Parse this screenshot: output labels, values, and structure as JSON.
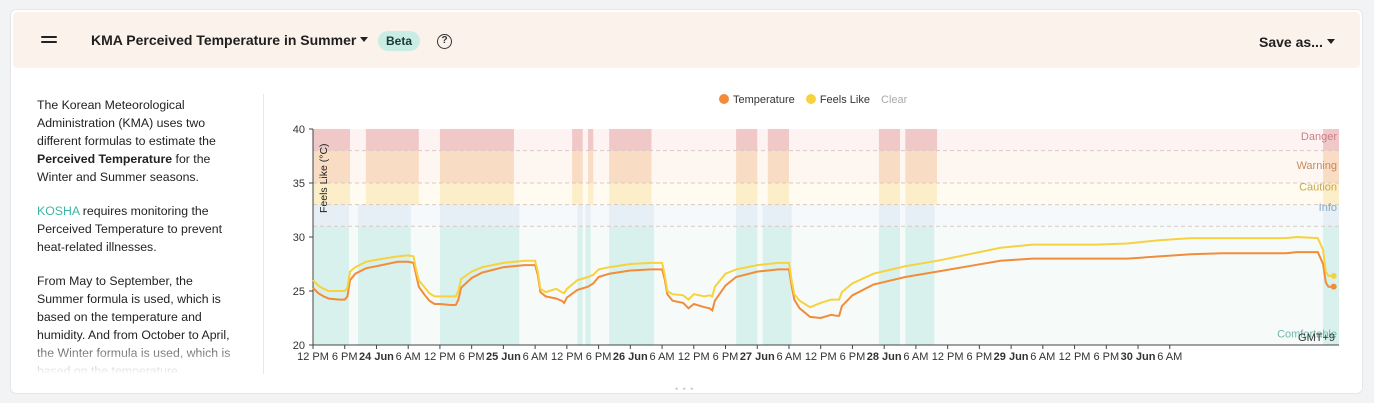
{
  "header": {
    "title": "KMA Perceived Temperature in Summer",
    "badge": "Beta",
    "help": "?",
    "save_label": "Save as..."
  },
  "description": {
    "p1_a": "The Korean Meteorological Administration (KMA) uses two different formulas to estimate the ",
    "p1_bold": "Perceived Temperature",
    "p1_b": " for the Winter and Summer seasons.",
    "p2_link": "KOSHA",
    "p2_b": " requires monitoring the Perceived Temperature to prevent heat-related illnesses.",
    "p3": "From May to September, the Summer formula is used, which is based on the temperature and humidity. And from October to April, the Winter formula is used, which is based on the temperature"
  },
  "legend": {
    "temperature": "Temperature",
    "feels_like": "Feels Like",
    "clear": "Clear"
  },
  "colors": {
    "temperature": "#f28c3a",
    "feels_like": "#f7d23e",
    "danger": "#f0c8c8",
    "warning": "#f9dcc4",
    "caution": "#fbeec8",
    "info": "#e6eef6",
    "comfortable": "#d8f1ec"
  },
  "chart_data": {
    "type": "line",
    "ylabel": "Feels Like (°C)",
    "ylim": [
      20,
      40
    ],
    "y_ticks": [
      20,
      25,
      30,
      35,
      40
    ],
    "x_ticks": [
      "12 PM",
      "6 PM",
      "24 Jun",
      "6 AM",
      "12 PM",
      "6 PM",
      "25 Jun",
      "6 AM",
      "12 PM",
      "6 PM",
      "26 Jun",
      "6 AM",
      "12 PM",
      "6 PM",
      "27 Jun",
      "6 AM",
      "12 PM",
      "6 PM",
      "28 Jun",
      "6 AM",
      "12 PM",
      "6 PM",
      "29 Jun",
      "6 AM",
      "12 PM",
      "6 PM",
      "30 Jun",
      "6 AM"
    ],
    "timezone": "GMT+9",
    "x_unit": "hours from 23 Jun 12 PM",
    "bands": [
      {
        "label": "Comfortable",
        "from": 20,
        "to": 31
      },
      {
        "label": "Info",
        "from": 31,
        "to": 33
      },
      {
        "label": "Caution",
        "from": 33,
        "to": 35
      },
      {
        "label": "Warning",
        "from": 35,
        "to": 38
      },
      {
        "label": "Danger",
        "from": 38,
        "to": 40
      }
    ],
    "series": [
      {
        "name": "Temperature",
        "points": [
          [
            0,
            25.3
          ],
          [
            1,
            24.8
          ],
          [
            2,
            24.5
          ],
          [
            3,
            24.3
          ],
          [
            5,
            24.2
          ],
          [
            6,
            24.2
          ],
          [
            6.5,
            24.5
          ],
          [
            7,
            26
          ],
          [
            8,
            26.6
          ],
          [
            10,
            27.1
          ],
          [
            12,
            27.3
          ],
          [
            16,
            27.7
          ],
          [
            18,
            27.7
          ],
          [
            19,
            27.6
          ],
          [
            19.5,
            26.5
          ],
          [
            20,
            25.4
          ],
          [
            21,
            24.7
          ],
          [
            22,
            24.1
          ],
          [
            23,
            23.8
          ],
          [
            24,
            23.8
          ],
          [
            26,
            23.7
          ],
          [
            27,
            23.7
          ],
          [
            27.5,
            24.2
          ],
          [
            28,
            25.3
          ],
          [
            30,
            26.2
          ],
          [
            32,
            26.7
          ],
          [
            36,
            27.2
          ],
          [
            40,
            27.4
          ],
          [
            42,
            27.4
          ],
          [
            42.5,
            26.5
          ],
          [
            43,
            24.9
          ],
          [
            44,
            24.5
          ],
          [
            46,
            24.3
          ],
          [
            47,
            24.1
          ],
          [
            47.5,
            23.9
          ],
          [
            48,
            24.4
          ],
          [
            50,
            25.1
          ],
          [
            52,
            25.4
          ],
          [
            53,
            25.7
          ],
          [
            54,
            26.3
          ],
          [
            56,
            26.6
          ],
          [
            60,
            26.9
          ],
          [
            64,
            27
          ],
          [
            66,
            27
          ],
          [
            66.5,
            26.1
          ],
          [
            67,
            24.7
          ],
          [
            68,
            24.1
          ],
          [
            70,
            23.9
          ],
          [
            71,
            23.4
          ],
          [
            72,
            23.8
          ],
          [
            74,
            23.5
          ],
          [
            75,
            23.4
          ],
          [
            75.5,
            23.2
          ],
          [
            76,
            24.1
          ],
          [
            78,
            25.5
          ],
          [
            80,
            26.3
          ],
          [
            84,
            26.8
          ],
          [
            88,
            27
          ],
          [
            90,
            27
          ],
          [
            90.5,
            25.5
          ],
          [
            91,
            24.2
          ],
          [
            92,
            23.4
          ],
          [
            94,
            22.6
          ],
          [
            96,
            22.5
          ],
          [
            98,
            22.8
          ],
          [
            99,
            22.7
          ],
          [
            99.5,
            22.7
          ],
          [
            100,
            23.6
          ],
          [
            102,
            24.6
          ],
          [
            106,
            25.6
          ],
          [
            112,
            26.3
          ],
          [
            118,
            26.8
          ],
          [
            124,
            27.3
          ],
          [
            130,
            27.8
          ],
          [
            136,
            28
          ],
          [
            148,
            28
          ],
          [
            154,
            28
          ],
          [
            160,
            28.2
          ],
          [
            166,
            28.4
          ],
          [
            172,
            28.5
          ],
          [
            178,
            28.5
          ],
          [
            184,
            28.5
          ],
          [
            186,
            28.6
          ],
          [
            190,
            28.6
          ],
          [
            191,
            27.5
          ],
          [
            191.5,
            25.8
          ],
          [
            192,
            25.4
          ],
          [
            193,
            25.4
          ]
        ]
      },
      {
        "name": "Feels Like",
        "points": [
          [
            0,
            26
          ],
          [
            1,
            25.5
          ],
          [
            2,
            25.2
          ],
          [
            3,
            25
          ],
          [
            5,
            25
          ],
          [
            6,
            25
          ],
          [
            6.5,
            25.3
          ],
          [
            7,
            26.8
          ],
          [
            8,
            27.2
          ],
          [
            10,
            27.7
          ],
          [
            12,
            27.9
          ],
          [
            16,
            28.2
          ],
          [
            18,
            28.3
          ],
          [
            19,
            28.2
          ],
          [
            19.5,
            27
          ],
          [
            20,
            26
          ],
          [
            21,
            25.4
          ],
          [
            22,
            24.8
          ],
          [
            23,
            24.5
          ],
          [
            24,
            24.5
          ],
          [
            26,
            24.5
          ],
          [
            27,
            24.5
          ],
          [
            27.5,
            25
          ],
          [
            28,
            26.1
          ],
          [
            30,
            26.8
          ],
          [
            32,
            27.2
          ],
          [
            36,
            27.6
          ],
          [
            40,
            27.8
          ],
          [
            42,
            27.8
          ],
          [
            42.5,
            26.8
          ],
          [
            43,
            25.2
          ],
          [
            44,
            24.9
          ],
          [
            46,
            25.2
          ],
          [
            47,
            24.9
          ],
          [
            47.5,
            24.8
          ],
          [
            48,
            25.2
          ],
          [
            50,
            26
          ],
          [
            52,
            26.3
          ],
          [
            53,
            26.5
          ],
          [
            54,
            27
          ],
          [
            56,
            27.2
          ],
          [
            60,
            27.5
          ],
          [
            64,
            27.6
          ],
          [
            66,
            27.6
          ],
          [
            66.5,
            26.5
          ],
          [
            67,
            25
          ],
          [
            68,
            24.7
          ],
          [
            70,
            24.6
          ],
          [
            71,
            24.2
          ],
          [
            72,
            24.7
          ],
          [
            74,
            24.5
          ],
          [
            75,
            24.6
          ],
          [
            75.5,
            24.5
          ],
          [
            76,
            25.4
          ],
          [
            78,
            26.6
          ],
          [
            80,
            27
          ],
          [
            84,
            27.4
          ],
          [
            88,
            27.6
          ],
          [
            90,
            27.6
          ],
          [
            90.5,
            26
          ],
          [
            91,
            24.7
          ],
          [
            92,
            24.1
          ],
          [
            94,
            23.5
          ],
          [
            96,
            23.9
          ],
          [
            98,
            24.2
          ],
          [
            99,
            24.2
          ],
          [
            99.5,
            24.2
          ],
          [
            100,
            24.9
          ],
          [
            102,
            25.7
          ],
          [
            106,
            26.6
          ],
          [
            112,
            27.3
          ],
          [
            118,
            27.8
          ],
          [
            124,
            28.4
          ],
          [
            130,
            29
          ],
          [
            136,
            29.3
          ],
          [
            148,
            29.3
          ],
          [
            154,
            29.4
          ],
          [
            160,
            29.7
          ],
          [
            166,
            29.9
          ],
          [
            172,
            29.9
          ],
          [
            178,
            29.9
          ],
          [
            184,
            29.9
          ],
          [
            186,
            30
          ],
          [
            190,
            29.9
          ],
          [
            191,
            28.8
          ],
          [
            191.5,
            26.8
          ],
          [
            192,
            26.4
          ],
          [
            193,
            26.4
          ]
        ]
      }
    ],
    "comfortable_shaded_hours": [
      [
        0,
        6.8
      ],
      [
        8.5,
        18.5
      ],
      [
        24,
        39
      ],
      [
        50,
        51
      ],
      [
        51.5,
        52.5
      ],
      [
        56,
        64.5
      ],
      [
        80,
        84
      ],
      [
        85,
        90.5
      ],
      [
        107,
        111
      ],
      [
        112,
        117.5
      ],
      [
        191,
        194
      ]
    ],
    "hot_shaded_hours": [
      [
        0,
        7
      ],
      [
        10,
        20
      ],
      [
        24,
        38
      ],
      [
        49,
        51
      ],
      [
        52,
        53
      ],
      [
        56,
        64
      ],
      [
        80,
        84
      ],
      [
        86,
        90
      ],
      [
        107,
        111
      ],
      [
        112,
        118
      ],
      [
        191,
        194
      ]
    ]
  }
}
